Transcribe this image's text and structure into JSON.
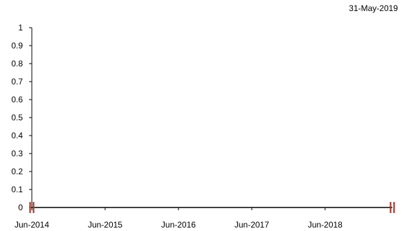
{
  "date_stamp": "31-May-2019",
  "chart_data": {
    "type": "line",
    "title": "",
    "xlabel": "",
    "ylabel": "",
    "ylim": [
      0,
      1
    ],
    "yticks": [
      "0",
      "0.1",
      "0.2",
      "0.3",
      "0.4",
      "0.5",
      "0.6",
      "0.7",
      "0.8",
      "0.9",
      "1"
    ],
    "xlim": [
      "2014-06",
      "2019-05"
    ],
    "xticks": [
      "Jun-2014",
      "Jun-2015",
      "Jun-2016",
      "Jun-2017",
      "Jun-2018"
    ],
    "grid": false,
    "legend": "none",
    "series": [],
    "colors": {
      "axis": "#000000",
      "break_marker": "#a0392c"
    }
  }
}
